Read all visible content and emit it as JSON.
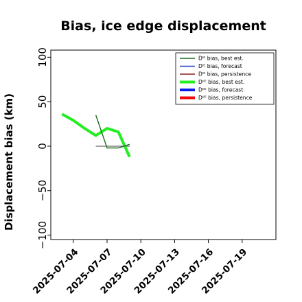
{
  "chart_data": {
    "type": "line",
    "title": "Bias, ice edge displacement",
    "xlabel": "",
    "ylabel": "Displacement bias (km)",
    "ylim": [
      -105,
      108
    ],
    "xlim": [
      "2025-07-02",
      "2025-07-22"
    ],
    "yticks": [
      100,
      50,
      0,
      -50,
      -100
    ],
    "xticks": [
      "2025-07-04",
      "2025-07-07",
      "2025-07-10",
      "2025-07-13",
      "2025-07-16",
      "2025-07-19"
    ],
    "highlighted_xtick": "2025-07-10",
    "highlight_color": "#228b22",
    "legend_position": "top-right",
    "series": [
      {
        "name": "Dᴵᴱ bias, best est.",
        "color": "#1a6b1a",
        "width": 1.4,
        "points": [
          [
            "2025-07-06",
            35
          ],
          [
            "2025-07-07",
            -2
          ],
          [
            "2025-07-08",
            -2
          ],
          [
            "2025-07-09",
            2
          ]
        ]
      },
      {
        "name": "Dᴵᴱ bias, forecast",
        "color": "#1f3fbf",
        "width": 1.4,
        "points": []
      },
      {
        "name": "Dᴵᴱ bias, persistence",
        "color": "#8b1a1a",
        "width": 1.4,
        "points": []
      },
      {
        "name": "Dᴵᴵᴱ bias, best est.",
        "color": "#22ee22",
        "width": 4,
        "points": [
          [
            "2025-07-03",
            36
          ],
          [
            "2025-07-04",
            29
          ],
          [
            "2025-07-05",
            20
          ],
          [
            "2025-07-06",
            12
          ],
          [
            "2025-07-07",
            20
          ],
          [
            "2025-07-08",
            16
          ],
          [
            "2025-07-09",
            -12
          ]
        ]
      },
      {
        "name": "Dᴵᴵᴱ bias, forecast",
        "color": "#0a1ef0",
        "width": 4,
        "points": []
      },
      {
        "name": "Dᴵᴵᴱ bias, persistence",
        "color": "#f00a0a",
        "width": 4,
        "points": []
      }
    ],
    "reference_line": {
      "color": "#444444",
      "points": [
        [
          "2025-07-06",
          0
        ],
        [
          "2025-07-09",
          0
        ]
      ]
    }
  }
}
